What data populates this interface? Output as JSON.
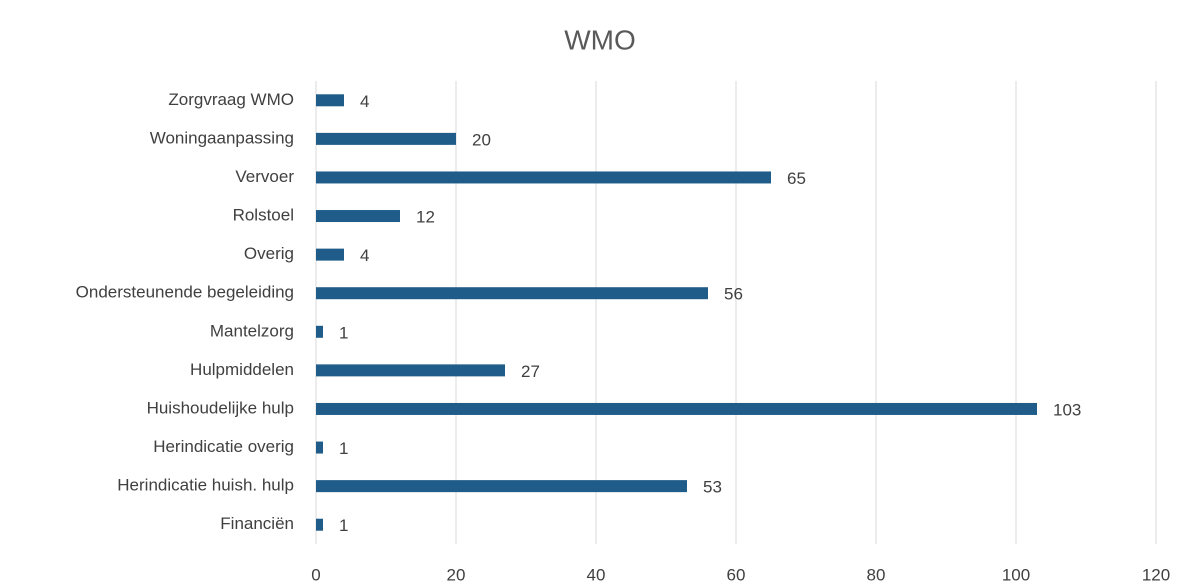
{
  "chart_data": {
    "type": "bar",
    "orientation": "horizontal",
    "title": "WMO",
    "categories": [
      "Zorgvraag WMO",
      "Woningaanpassing",
      "Vervoer",
      "Rolstoel",
      "Overig",
      "Ondersteunende begeleiding",
      "Mantelzorg",
      "Hulpmiddelen",
      "Huishoudelijke hulp",
      "Herindicatie overig",
      "Herindicatie huish. hulp",
      "Financiën"
    ],
    "values": [
      4,
      20,
      65,
      12,
      4,
      56,
      1,
      27,
      103,
      1,
      53,
      1
    ],
    "color": "#1f5c89",
    "xlim": [
      0,
      120
    ],
    "xticks": [
      0,
      20,
      40,
      60,
      80,
      100,
      120
    ],
    "grid": true
  }
}
